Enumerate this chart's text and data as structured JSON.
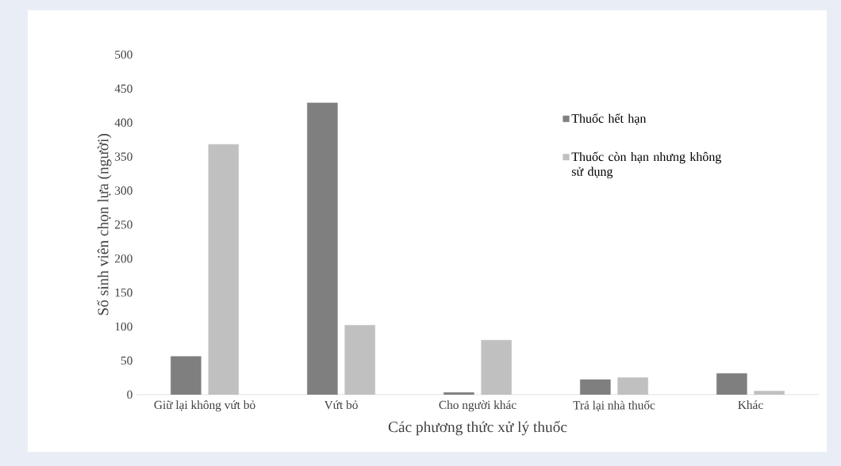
{
  "chart_data": {
    "type": "bar",
    "xlabel": "Các phương thức xử lý thuốc",
    "ylabel": "Số sinh viên chọn lựa (người)",
    "categories": [
      "Giữ lại không vứt bỏ",
      "Vứt bỏ",
      "Cho người khác",
      "Trả lại nhà thuốc",
      "Khác"
    ],
    "series": [
      {
        "name": "Thuốc  hết hạn",
        "color": "#7f7f7f",
        "values": [
          56,
          429,
          3,
          22,
          31
        ]
      },
      {
        "name": "Thuốc  còn hạn nhưng  không sử dụng",
        "color": "#c0c0c0",
        "values": [
          368,
          102,
          80,
          25,
          5
        ]
      }
    ],
    "ylim": [
      0,
      500
    ],
    "yticks": [
      0,
      50,
      100,
      150,
      200,
      250,
      300,
      350,
      400,
      450,
      500
    ],
    "grid": false,
    "legend": "top right"
  }
}
